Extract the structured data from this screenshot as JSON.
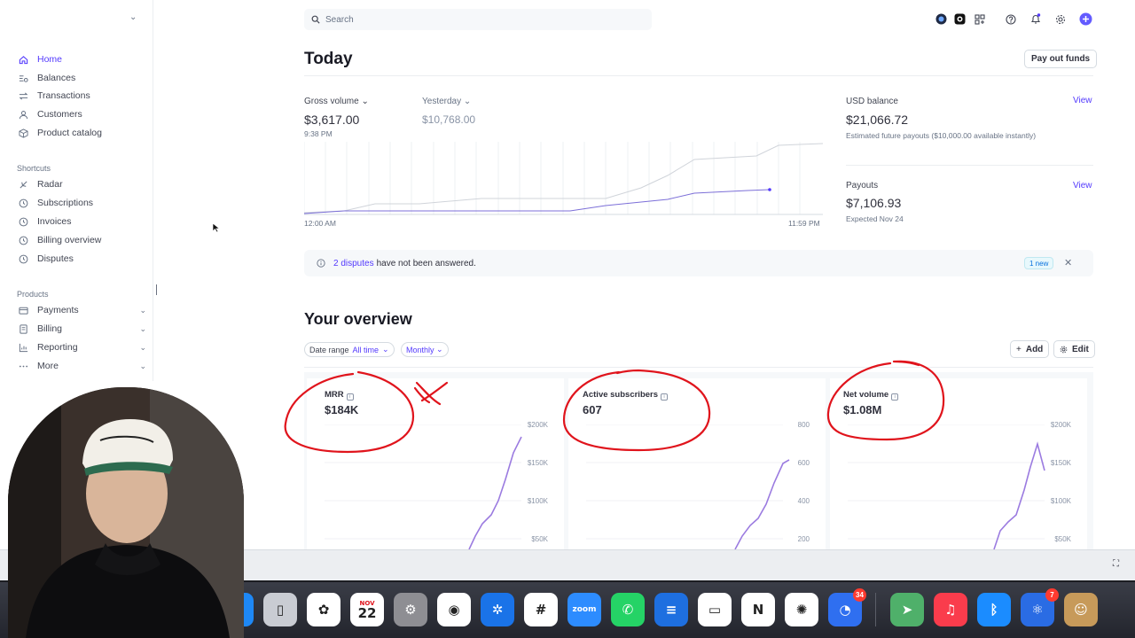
{
  "sidebar": {
    "main_items": [
      {
        "label": "Home",
        "icon": "home-icon"
      },
      {
        "label": "Balances",
        "icon": "balances-icon"
      },
      {
        "label": "Transactions",
        "icon": "transactions-icon"
      },
      {
        "label": "Customers",
        "icon": "customers-icon"
      },
      {
        "label": "Product catalog",
        "icon": "box-icon"
      }
    ],
    "shortcuts_label": "Shortcuts",
    "shortcuts": [
      {
        "label": "Radar",
        "icon": "radar-icon"
      },
      {
        "label": "Subscriptions",
        "icon": "clock-icon"
      },
      {
        "label": "Invoices",
        "icon": "clock-icon"
      },
      {
        "label": "Billing overview",
        "icon": "clock-icon"
      },
      {
        "label": "Disputes",
        "icon": "clock-icon"
      }
    ],
    "products_label": "Products",
    "products": [
      {
        "label": "Payments",
        "icon": "payments-icon"
      },
      {
        "label": "Billing",
        "icon": "billing-icon"
      },
      {
        "label": "Reporting",
        "icon": "reporting-icon"
      },
      {
        "label": "More",
        "icon": "more-icon"
      }
    ]
  },
  "search": {
    "placeholder": "Search"
  },
  "today": {
    "title": "Today",
    "payout_button": "Pay out funds",
    "gross_label": "Gross volume",
    "gross_value": "$3,617.00",
    "gross_time": "9:38 PM",
    "yesterday_label": "Yesterday",
    "yesterday_value": "$10,768.00",
    "axis_start": "12:00 AM",
    "axis_end": "11:59 PM"
  },
  "balance": {
    "usd_label": "USD balance",
    "usd_value": "$21,066.72",
    "usd_sub": "Estimated future payouts ($10,000.00 available instantly)",
    "view_label": "View",
    "payouts_label": "Payouts",
    "payouts_value": "$7,106.93",
    "payouts_sub": "Expected Nov 24"
  },
  "disputes": {
    "link_text": "2 disputes",
    "rest_text": "have not been answered.",
    "badge": "1 new"
  },
  "overview": {
    "title": "Your overview",
    "date_range_key": "Date range",
    "date_range_value": "All time",
    "interval": "Monthly",
    "add_label": "Add",
    "edit_label": "Edit",
    "cards": [
      {
        "title": "MRR",
        "value": "$184K",
        "axis": [
          "$200K",
          "$150K",
          "$100K",
          "$50K"
        ]
      },
      {
        "title": "Active subscribers",
        "value": "607",
        "axis": [
          "800",
          "600",
          "400",
          "200"
        ]
      },
      {
        "title": "Net volume",
        "value": "$1.08M",
        "axis": [
          "$200K",
          "$150K",
          "$100K",
          "$50K"
        ]
      }
    ]
  },
  "dock": [
    {
      "name": "app-store-icon",
      "color": "#1e88f5",
      "glyph": "A"
    },
    {
      "name": "iphone-mirroring-icon",
      "color": "#c9ccd3",
      "glyph": "▯"
    },
    {
      "name": "photos-icon",
      "color": "#ffffff",
      "glyph": "✿"
    },
    {
      "name": "calendar-icon",
      "color": "#ffffff",
      "glyph": "22",
      "month": "NOV"
    },
    {
      "name": "system-settings-icon",
      "color": "#8e8e93",
      "glyph": "⚙"
    },
    {
      "name": "chrome-icon",
      "color": "#ffffff",
      "glyph": "◉"
    },
    {
      "name": "setapp-icon",
      "color": "#1a73e8",
      "glyph": "✲"
    },
    {
      "name": "slack-icon",
      "color": "#ffffff",
      "glyph": "#"
    },
    {
      "name": "zoom-icon",
      "color": "#2d8cff",
      "glyph": "zoom"
    },
    {
      "name": "whatsapp-icon",
      "color": "#25d366",
      "glyph": "✆"
    },
    {
      "name": "docs-icon",
      "color": "#1e6fe0",
      "glyph": "≡"
    },
    {
      "name": "notes-icon",
      "color": "#ffffff",
      "glyph": "▭"
    },
    {
      "name": "notion-icon",
      "color": "#ffffff",
      "glyph": "N"
    },
    {
      "name": "chatgpt-icon",
      "color": "#ffffff",
      "glyph": "✺"
    },
    {
      "name": "screen-studio-icon",
      "color": "#2f6ff0",
      "glyph": "◔",
      "badge": "34"
    },
    {
      "name": "maps-icon",
      "color": "#4fb06a",
      "glyph": "➤"
    },
    {
      "name": "music-icon",
      "color": "#fa3c4c",
      "glyph": "♫"
    },
    {
      "name": "bluetooth-icon",
      "color": "#1b8cff",
      "glyph": "ᛒ"
    },
    {
      "name": "electron-icon",
      "color": "#2a6ce4",
      "glyph": "⚛",
      "badge": "7"
    },
    {
      "name": "contacts-icon",
      "color": "#c79a5a",
      "glyph": "☺"
    }
  ],
  "colors": {
    "accent": "#533afd",
    "chart_line": "#9b7be0",
    "ink": "#e0141c"
  }
}
